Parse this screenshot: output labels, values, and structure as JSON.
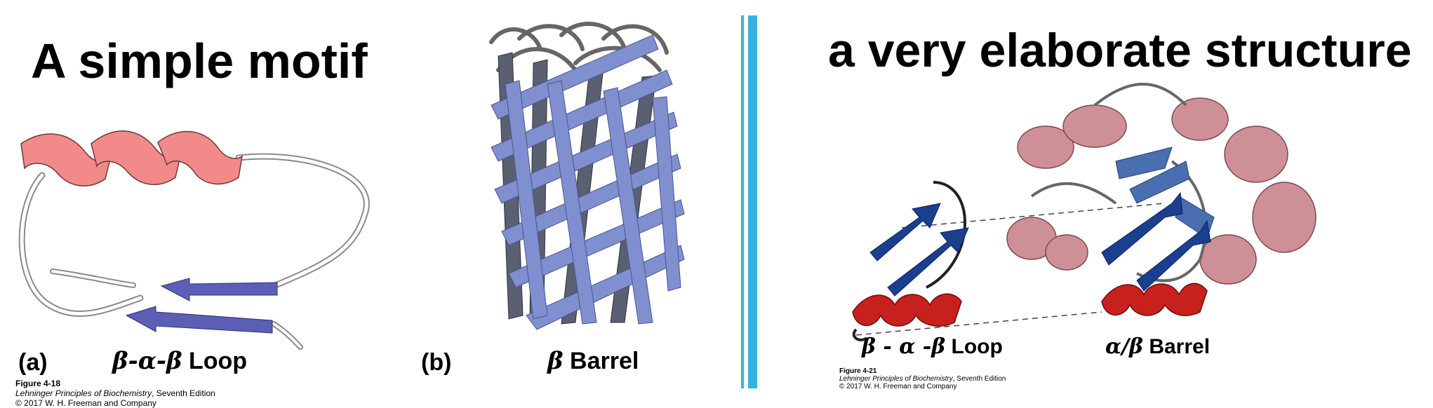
{
  "left": {
    "title": "A simple motif",
    "panel_a": {
      "letter": "(a)",
      "greek": "β-α-β",
      "word": "Loop"
    },
    "panel_b": {
      "letter": "(b)",
      "greek": "β",
      "word": "Barrel"
    },
    "caption": {
      "figure": "Figure 4-18",
      "book": "Lehninger Principles of Biochemistry",
      "edition": ", Seventh Edition",
      "copyright": "© 2017 W. H. Freeman and Company"
    }
  },
  "right": {
    "title": "a very elaborate structure",
    "loop_label": {
      "greek": "β - α -β",
      "word": "Loop"
    },
    "barrel_label": {
      "greek": "α/β",
      "word": "Barrel"
    },
    "caption": {
      "figure": "Figure 4-21",
      "book": "Lehninger Principles of Biochemistry",
      "edition": ", Seventh Edition",
      "copyright": "© 2017 W. H. Freeman and Company"
    }
  },
  "colors": {
    "helix_salmon": "#f28a8a",
    "strand_purple": "#5b5fb5",
    "barrel_blue": "#7f8fcf",
    "strand_navy": "#1a3f8f",
    "helix_red": "#c8201c",
    "helix_mauve": "#cf8f96",
    "divider": "#35b3e0"
  }
}
